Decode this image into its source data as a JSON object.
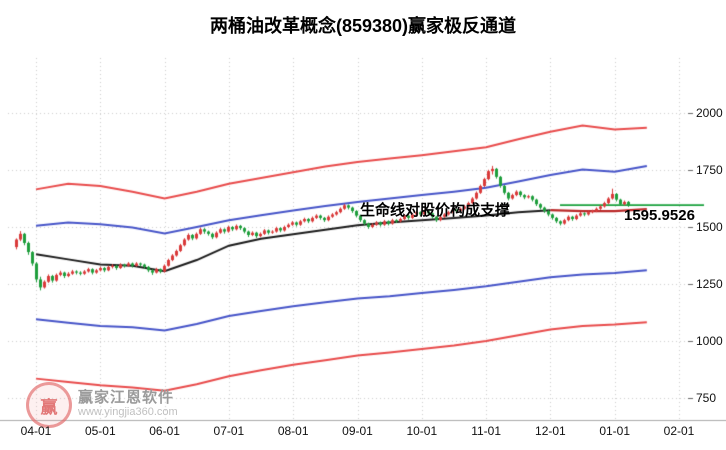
{
  "title": "两桶油改革概念(859380)赢家极反通道",
  "annotation": "生命线对股价构成支撑",
  "price_label": "1595.9526",
  "watermark": {
    "brand": "赢家江恩软件",
    "site": "www.yingjia360.com",
    "seal_text": "赢"
  },
  "colors": {
    "up": "#d93a3a",
    "down": "#1e9e3c",
    "channel_red": "#e84a4a",
    "channel_blue": "#4553c8",
    "lifeline": "#1a1a1a",
    "lifeline_support": "#b92626",
    "price_line": "#18a03c",
    "grid": "#cccccc",
    "axis": "#aaaaaa",
    "tick": "#666666"
  },
  "chart_data": {
    "type": "candlestick",
    "x_ticks": [
      "04-01",
      "05-01",
      "06-01",
      "07-01",
      "08-01",
      "09-01",
      "10-01",
      "11-01",
      "12-01",
      "01-01",
      "02-01"
    ],
    "y_ticks": [
      2000,
      1750,
      1500,
      1250,
      1000,
      750
    ],
    "ylim": [
      700,
      2100
    ],
    "last_price": 1595.9526,
    "lifeline_support_from_index": 16,
    "candles": [
      [
        1412,
        1450,
        1402,
        1445
      ],
      [
        1445,
        1482,
        1438,
        1470
      ],
      [
        1470,
        1474,
        1420,
        1430
      ],
      [
        1430,
        1436,
        1378,
        1390
      ],
      [
        1390,
        1394,
        1330,
        1340
      ],
      [
        1340,
        1346,
        1258,
        1270
      ],
      [
        1270,
        1282,
        1222,
        1235
      ],
      [
        1235,
        1266,
        1230,
        1260
      ],
      [
        1260,
        1292,
        1255,
        1285
      ],
      [
        1285,
        1290,
        1256,
        1265
      ],
      [
        1265,
        1296,
        1260,
        1290
      ],
      [
        1290,
        1308,
        1284,
        1300
      ],
      [
        1300,
        1304,
        1276,
        1285
      ],
      [
        1285,
        1302,
        1280,
        1295
      ],
      [
        1295,
        1312,
        1290,
        1305
      ],
      [
        1305,
        1310,
        1292,
        1300
      ],
      [
        1300,
        1306,
        1288,
        1295
      ],
      [
        1295,
        1311,
        1290,
        1305
      ],
      [
        1305,
        1321,
        1300,
        1315
      ],
      [
        1315,
        1319,
        1292,
        1300
      ],
      [
        1300,
        1316,
        1295,
        1310
      ],
      [
        1310,
        1326,
        1305,
        1320
      ],
      [
        1320,
        1324,
        1302,
        1310
      ],
      [
        1310,
        1331,
        1306,
        1325
      ],
      [
        1325,
        1337,
        1318,
        1330
      ],
      [
        1330,
        1334,
        1312,
        1320
      ],
      [
        1320,
        1341,
        1316,
        1335
      ],
      [
        1335,
        1339,
        1322,
        1330
      ],
      [
        1330,
        1346,
        1325,
        1340
      ],
      [
        1340,
        1344,
        1322,
        1330
      ],
      [
        1330,
        1346,
        1326,
        1340
      ],
      [
        1340,
        1344,
        1327,
        1335
      ],
      [
        1335,
        1339,
        1317,
        1325
      ],
      [
        1325,
        1329,
        1302,
        1310
      ],
      [
        1310,
        1315,
        1290,
        1300
      ],
      [
        1300,
        1321,
        1296,
        1315
      ],
      [
        1315,
        1318,
        1297,
        1305
      ],
      [
        1305,
        1336,
        1300,
        1330
      ],
      [
        1330,
        1361,
        1326,
        1355
      ],
      [
        1355,
        1381,
        1350,
        1375
      ],
      [
        1375,
        1401,
        1370,
        1395
      ],
      [
        1395,
        1426,
        1390,
        1420
      ],
      [
        1420,
        1451,
        1415,
        1445
      ],
      [
        1445,
        1472,
        1440,
        1465
      ],
      [
        1465,
        1469,
        1442,
        1450
      ],
      [
        1450,
        1476,
        1445,
        1470
      ],
      [
        1470,
        1497,
        1465,
        1490
      ],
      [
        1490,
        1495,
        1470,
        1480
      ],
      [
        1480,
        1484,
        1462,
        1470
      ],
      [
        1470,
        1475,
        1447,
        1455
      ],
      [
        1455,
        1481,
        1450,
        1475
      ],
      [
        1475,
        1496,
        1470,
        1490
      ],
      [
        1490,
        1494,
        1471,
        1480
      ],
      [
        1480,
        1506,
        1475,
        1500
      ],
      [
        1500,
        1504,
        1482,
        1490
      ],
      [
        1490,
        1511,
        1485,
        1505
      ],
      [
        1505,
        1509,
        1487,
        1495
      ],
      [
        1495,
        1499,
        1472,
        1480
      ],
      [
        1480,
        1484,
        1456,
        1465
      ],
      [
        1465,
        1481,
        1460,
        1475
      ],
      [
        1475,
        1479,
        1452,
        1460
      ],
      [
        1460,
        1476,
        1455,
        1470
      ],
      [
        1470,
        1491,
        1465,
        1485
      ],
      [
        1485,
        1489,
        1467,
        1475
      ],
      [
        1475,
        1486,
        1470,
        1480
      ],
      [
        1480,
        1501,
        1475,
        1495
      ],
      [
        1495,
        1499,
        1477,
        1485
      ],
      [
        1485,
        1506,
        1480,
        1500
      ],
      [
        1500,
        1516,
        1495,
        1510
      ],
      [
        1510,
        1526,
        1505,
        1520
      ],
      [
        1520,
        1524,
        1502,
        1510
      ],
      [
        1510,
        1531,
        1505,
        1525
      ],
      [
        1525,
        1541,
        1520,
        1535
      ],
      [
        1535,
        1539,
        1517,
        1525
      ],
      [
        1525,
        1546,
        1520,
        1540
      ],
      [
        1540,
        1556,
        1535,
        1550
      ],
      [
        1550,
        1554,
        1532,
        1540
      ],
      [
        1540,
        1544,
        1522,
        1530
      ],
      [
        1530,
        1551,
        1525,
        1545
      ],
      [
        1545,
        1561,
        1540,
        1555
      ],
      [
        1555,
        1571,
        1550,
        1565
      ],
      [
        1565,
        1586,
        1560,
        1580
      ],
      [
        1580,
        1601,
        1575,
        1595
      ],
      [
        1595,
        1599,
        1577,
        1585
      ],
      [
        1585,
        1589,
        1562,
        1570
      ],
      [
        1570,
        1574,
        1542,
        1550
      ],
      [
        1550,
        1554,
        1522,
        1530
      ],
      [
        1530,
        1534,
        1507,
        1515
      ],
      [
        1515,
        1519,
        1492,
        1500
      ],
      [
        1500,
        1516,
        1495,
        1510
      ],
      [
        1510,
        1526,
        1505,
        1520
      ],
      [
        1520,
        1524,
        1502,
        1510
      ],
      [
        1510,
        1531,
        1505,
        1525
      ],
      [
        1525,
        1529,
        1507,
        1515
      ],
      [
        1515,
        1536,
        1510,
        1530
      ],
      [
        1530,
        1534,
        1517,
        1525
      ],
      [
        1525,
        1541,
        1520,
        1535
      ],
      [
        1535,
        1556,
        1530,
        1550
      ],
      [
        1550,
        1554,
        1532,
        1540
      ],
      [
        1540,
        1561,
        1535,
        1555
      ],
      [
        1555,
        1571,
        1550,
        1565
      ],
      [
        1565,
        1569,
        1547,
        1555
      ],
      [
        1555,
        1576,
        1550,
        1570
      ],
      [
        1570,
        1574,
        1552,
        1560
      ],
      [
        1560,
        1564,
        1537,
        1545
      ],
      [
        1545,
        1549,
        1522,
        1530
      ],
      [
        1530,
        1551,
        1525,
        1545
      ],
      [
        1545,
        1561,
        1540,
        1555
      ],
      [
        1555,
        1571,
        1550,
        1565
      ],
      [
        1565,
        1581,
        1560,
        1575
      ],
      [
        1575,
        1579,
        1562,
        1570
      ],
      [
        1570,
        1586,
        1565,
        1580
      ],
      [
        1580,
        1596,
        1575,
        1590
      ],
      [
        1590,
        1611,
        1585,
        1605
      ],
      [
        1605,
        1631,
        1600,
        1625
      ],
      [
        1625,
        1656,
        1620,
        1650
      ],
      [
        1650,
        1686,
        1645,
        1680
      ],
      [
        1680,
        1716,
        1675,
        1710
      ],
      [
        1710,
        1751,
        1705,
        1745
      ],
      [
        1745,
        1768,
        1730,
        1755
      ],
      [
        1755,
        1759,
        1712,
        1720
      ],
      [
        1720,
        1724,
        1672,
        1680
      ],
      [
        1680,
        1684,
        1642,
        1650
      ],
      [
        1650,
        1654,
        1617,
        1625
      ],
      [
        1625,
        1646,
        1620,
        1640
      ],
      [
        1640,
        1661,
        1635,
        1655
      ],
      [
        1655,
        1659,
        1632,
        1640
      ],
      [
        1640,
        1644,
        1622,
        1630
      ],
      [
        1630,
        1641,
        1625,
        1635
      ],
      [
        1635,
        1639,
        1612,
        1620
      ],
      [
        1620,
        1624,
        1592,
        1600
      ],
      [
        1600,
        1604,
        1577,
        1585
      ],
      [
        1585,
        1589,
        1562,
        1570
      ],
      [
        1570,
        1574,
        1547,
        1555
      ],
      [
        1555,
        1559,
        1532,
        1540
      ],
      [
        1540,
        1544,
        1517,
        1525
      ],
      [
        1525,
        1529,
        1507,
        1515
      ],
      [
        1515,
        1536,
        1510,
        1530
      ],
      [
        1530,
        1551,
        1525,
        1545
      ],
      [
        1545,
        1549,
        1527,
        1535
      ],
      [
        1535,
        1556,
        1530,
        1550
      ],
      [
        1550,
        1566,
        1545,
        1560
      ],
      [
        1560,
        1564,
        1547,
        1555
      ],
      [
        1555,
        1571,
        1550,
        1565
      ],
      [
        1565,
        1576,
        1560,
        1570
      ],
      [
        1570,
        1586,
        1565,
        1580
      ],
      [
        1580,
        1596,
        1575,
        1590
      ],
      [
        1590,
        1611,
        1585,
        1605
      ],
      [
        1605,
        1631,
        1600,
        1625
      ],
      [
        1625,
        1668,
        1620,
        1645
      ],
      [
        1645,
        1649,
        1612,
        1620
      ],
      [
        1620,
        1624,
        1592,
        1600
      ],
      [
        1600,
        1616,
        1595,
        1610
      ],
      [
        1610,
        1614,
        1588,
        1595.95
      ]
    ],
    "channel_lines": {
      "upper_red": [
        1665,
        1690,
        1680,
        1655,
        1625,
        1655,
        1690,
        1715,
        1740,
        1765,
        1785,
        1800,
        1815,
        1832,
        1850,
        1885,
        1918,
        1945,
        1928,
        1935
      ],
      "upper_blue": [
        1505,
        1520,
        1512,
        1498,
        1472,
        1500,
        1530,
        1552,
        1572,
        1592,
        1610,
        1625,
        1640,
        1655,
        1672,
        1700,
        1728,
        1752,
        1742,
        1768
      ],
      "lifeline": [
        1380,
        1358,
        1336,
        1330,
        1306,
        1355,
        1418,
        1448,
        1468,
        1488,
        1508,
        1520,
        1530,
        1540,
        1550,
        1565,
        1574,
        1570,
        1570,
        1578
      ],
      "lower_blue": [
        1095,
        1080,
        1066,
        1060,
        1046,
        1075,
        1110,
        1132,
        1152,
        1170,
        1186,
        1196,
        1210,
        1224,
        1240,
        1260,
        1280,
        1292,
        1298,
        1310
      ],
      "lower_red": [
        835,
        820,
        806,
        796,
        782,
        810,
        845,
        872,
        896,
        916,
        936,
        950,
        965,
        980,
        1000,
        1025,
        1050,
        1066,
        1072,
        1082
      ]
    }
  }
}
